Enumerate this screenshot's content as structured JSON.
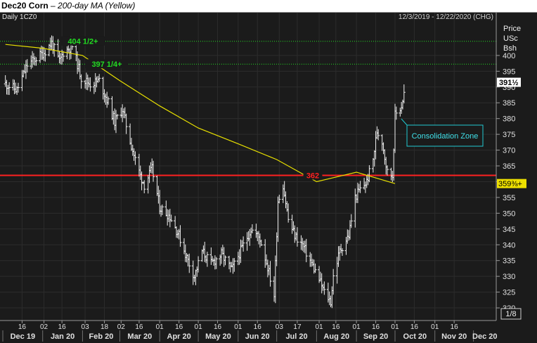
{
  "header": {
    "symbol": "Dec20 Corn",
    "separator": " – ",
    "subtitle": "200-day MA (Yellow)"
  },
  "chart_data": {
    "type": "ohlc",
    "title": "Dec20 Corn",
    "subtitle": "200-day MA (Yellow)",
    "period_label": "Daily 1CZ0",
    "date_range": "12/3/2019 - 12/22/2020 (CHG)",
    "ylabel_lines": [
      "Price",
      "USc",
      "Bsh"
    ],
    "ylim": [
      316,
      410
    ],
    "y_ticks": [
      320,
      325,
      330,
      335,
      340,
      345,
      350,
      355,
      360,
      365,
      370,
      375,
      380,
      385,
      390,
      395,
      400
    ],
    "x_days": [
      "16",
      "02",
      "16",
      "03",
      "18",
      "02",
      "16",
      "01",
      "16",
      "01",
      "16",
      "01",
      "16",
      "03",
      "17",
      "01",
      "16",
      "01",
      "16",
      "01",
      "16",
      "01",
      "16"
    ],
    "x_months": [
      "Dec 19",
      "Jan 20",
      "Feb 20",
      "Mar 20",
      "Apr 20",
      "May 20",
      "Jun 20",
      "Jul 20",
      "Aug 20",
      "Sep 20",
      "Oct 20",
      "Nov 20",
      "Dec 20"
    ],
    "tick_unit": "1/8",
    "last_price_label": "391½",
    "ma_value_label": "359⅜+",
    "levels": [
      {
        "value": 404.5,
        "label": "404 1/2+",
        "color": "#22dd22",
        "style": "dotted"
      },
      {
        "value": 397.25,
        "label": "397 1/4+",
        "color": "#22dd22",
        "style": "dotted"
      },
      {
        "value": 362,
        "label": "362",
        "color": "#ff2020",
        "style": "solid"
      }
    ],
    "annotation": "Consolidation Zone",
    "price_path": [
      [
        "2019-12-03",
        391
      ],
      [
        "2019-12-12",
        389
      ],
      [
        "2019-12-20",
        397
      ],
      [
        "2020-01-02",
        401
      ],
      [
        "2020-01-08",
        404
      ],
      [
        "2020-01-14",
        398
      ],
      [
        "2020-01-17",
        401
      ],
      [
        "2020-01-24",
        403
      ],
      [
        "2020-01-31",
        393
      ],
      [
        "2020-02-07",
        391
      ],
      [
        "2020-02-14",
        392
      ],
      [
        "2020-02-21",
        385
      ],
      [
        "2020-02-26",
        379
      ],
      [
        "2020-03-03",
        383
      ],
      [
        "2020-03-09",
        373
      ],
      [
        "2020-03-13",
        367
      ],
      [
        "2020-03-17",
        362
      ],
      [
        "2020-03-20",
        359
      ],
      [
        "2020-03-26",
        364
      ],
      [
        "2020-04-01",
        352
      ],
      [
        "2020-04-09",
        349
      ],
      [
        "2020-04-16",
        343
      ],
      [
        "2020-04-22",
        336
      ],
      [
        "2020-04-28",
        330
      ],
      [
        "2020-05-04",
        338
      ],
      [
        "2020-05-11",
        334
      ],
      [
        "2020-05-19",
        337
      ],
      [
        "2020-05-27",
        332
      ],
      [
        "2020-06-04",
        339
      ],
      [
        "2020-06-11",
        345
      ],
      [
        "2020-06-18",
        342
      ],
      [
        "2020-06-24",
        333
      ],
      [
        "2020-06-29",
        324
      ],
      [
        "2020-07-02",
        354
      ],
      [
        "2020-07-06",
        359
      ],
      [
        "2020-07-10",
        348
      ],
      [
        "2020-07-15",
        343
      ],
      [
        "2020-07-21",
        340
      ],
      [
        "2020-07-27",
        335
      ],
      [
        "2020-08-03",
        329
      ],
      [
        "2020-08-07",
        325
      ],
      [
        "2020-08-12",
        322
      ],
      [
        "2020-08-14",
        330
      ],
      [
        "2020-08-19",
        338
      ],
      [
        "2020-08-26",
        343
      ],
      [
        "2020-08-31",
        355
      ],
      [
        "2020-09-03",
        357
      ],
      [
        "2020-09-09",
        360
      ],
      [
        "2020-09-14",
        367
      ],
      [
        "2020-09-17",
        376
      ],
      [
        "2020-09-21",
        373
      ],
      [
        "2020-09-25",
        363
      ],
      [
        "2020-09-29",
        362
      ],
      [
        "2020-10-01",
        381
      ],
      [
        "2020-10-06",
        384
      ],
      [
        "2020-10-08",
        388
      ]
    ],
    "ma_path": [
      [
        "2019-12-03",
        403.5
      ],
      [
        "2020-01-01",
        402.3
      ],
      [
        "2020-02-01",
        400
      ],
      [
        "2020-03-01",
        392
      ],
      [
        "2020-04-01",
        384
      ],
      [
        "2020-05-01",
        377
      ],
      [
        "2020-06-01",
        372
      ],
      [
        "2020-07-01",
        367
      ],
      [
        "2020-08-01",
        360
      ],
      [
        "2020-09-01",
        363
      ],
      [
        "2020-10-01",
        359.4
      ]
    ]
  }
}
